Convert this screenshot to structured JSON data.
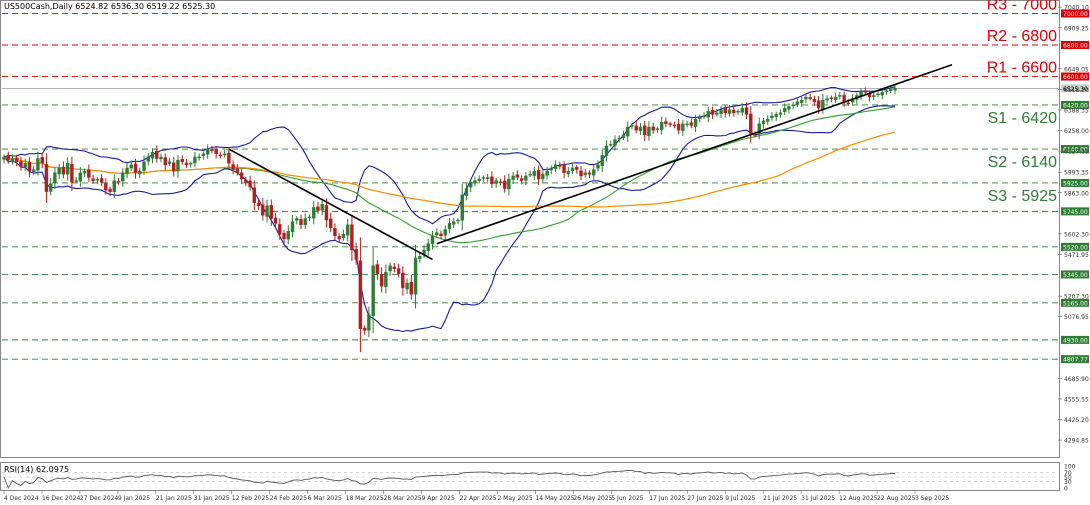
{
  "header": {
    "title": "US500Cash,Daily",
    "ohlc": "6524.82 6536.30 6519.22 6525.30"
  },
  "rsi_header": "RSI(14) 62.0975",
  "colors": {
    "bull": "#2e7d32",
    "bear": "#b71c1c",
    "bollinger": "#1a1aa6",
    "ma50": "#33a02c",
    "ma100": "#ff8c00",
    "resistance": "#e00000",
    "support": "#2e7d32",
    "trendline": "#000000",
    "rsi": "#555555"
  },
  "levels": {
    "resistance": [
      {
        "label": "R3 - 7000",
        "tag": "7000.00",
        "value": 7000
      },
      {
        "label": "R2 - 6800",
        "tag": "6800.00",
        "value": 6800
      },
      {
        "label": "R1 - 6600",
        "tag": "6600.00",
        "value": 6600
      }
    ],
    "support": [
      {
        "label": "S1 - 6420",
        "tag": "6420.00",
        "value": 6420
      },
      {
        "label": "S2 - 6140",
        "tag": "6140.00",
        "value": 6140
      },
      {
        "label": "S3 - 5925",
        "tag": "5925.00",
        "value": 5925
      },
      {
        "label": "",
        "tag": "5745.00",
        "value": 5745
      },
      {
        "label": "",
        "tag": "5520.00",
        "value": 5520
      },
      {
        "label": "",
        "tag": "5345.00",
        "value": 5345
      },
      {
        "label": "",
        "tag": "5165.00",
        "value": 5165
      },
      {
        "label": "",
        "tag": "4930.00",
        "value": 4930
      },
      {
        "label": "",
        "tag": "4807.77",
        "value": 4807.77
      }
    ],
    "current_price_tag": "6525.30"
  },
  "chart_data": {
    "type": "candlestick",
    "ylim": [
      4200,
      7060
    ],
    "y_ticks": [
      "7040.10",
      "6909.25",
      "6649.05",
      "6518.20",
      "6388.35",
      "6258.00",
      "6127.15",
      "5993.35",
      "5863.00",
      "5602.30",
      "5471.95",
      "5207.30",
      "5076.95",
      "4685.90",
      "4555.55",
      "4425.20",
      "4294.85"
    ],
    "x_labels": [
      "4 Dec 2024",
      "16 Dec 2024",
      "27 Dec 2024",
      "9 Jan 2025",
      "21 Jan 2025",
      "31 Jan 2025",
      "12 Feb 2025",
      "24 Feb 2025",
      "6 Mar 2025",
      "18 Mar 2025",
      "28 Mar 2025",
      "9 Apr 2025",
      "22 Apr 2025",
      "2 May 2025",
      "14 May 2025",
      "26 May 2025",
      "5 Jun 2025",
      "17 Jun 2025",
      "27 Jun 2025",
      "9 Jul 2025",
      "21 Jul 2025",
      "31 Jul 2025",
      "12 Aug 2025",
      "22 Aug 2025",
      "3 Sep 2025"
    ],
    "closes": [
      6090,
      6070,
      6080,
      6060,
      6030,
      6050,
      6000,
      6010,
      6080,
      6050,
      5870,
      5920,
      5990,
      6020,
      5980,
      6050,
      5930,
      5940,
      5990,
      6000,
      5960,
      5940,
      5950,
      5930,
      5880,
      5870,
      5940,
      5930,
      5990,
      6020,
      6040,
      5990,
      6000,
      6060,
      6090,
      6120,
      6080,
      6090,
      6040,
      6060,
      6000,
      6070,
      6060,
      6040,
      6050,
      6090,
      6090,
      6110,
      6140,
      6130,
      6110,
      6100,
      6110,
      6050,
      6010,
      5990,
      5950,
      5930,
      5900,
      5800,
      5780,
      5720,
      5780,
      5700,
      5670,
      5600,
      5570,
      5620,
      5680,
      5700,
      5660,
      5700,
      5710,
      5770,
      5750,
      5790,
      5690,
      5640,
      5590,
      5570,
      5600,
      5660,
      5500,
      5440,
      5000,
      4990,
      5090,
      5400,
      5350,
      5270,
      5360,
      5400,
      5380,
      5350,
      5260,
      5290,
      5220,
      5450,
      5460,
      5500,
      5540,
      5590,
      5610,
      5590,
      5630,
      5670,
      5680,
      5690,
      5850,
      5890,
      5930,
      5940,
      5950,
      5960,
      5960,
      5920,
      5940,
      5930,
      5890,
      5950,
      5970,
      5960,
      5940,
      5970,
      5980,
      6000,
      5950,
      5980,
      6000,
      6020,
      6040,
      6030,
      5990,
      6000,
      6020,
      6010,
      5970,
      5990,
      5980,
      6010,
      6040,
      6100,
      6160,
      6170,
      6200,
      6210,
      6230,
      6280,
      6290,
      6260,
      6280,
      6230,
      6280,
      6260,
      6270,
      6310,
      6300,
      6300,
      6290,
      6260,
      6300,
      6300,
      6290,
      6330,
      6340,
      6350,
      6380,
      6360,
      6370,
      6390,
      6370,
      6390,
      6370,
      6380,
      6400,
      6360,
      6240,
      6230,
      6300,
      6320,
      6330,
      6350,
      6360,
      6370,
      6400,
      6410,
      6420,
      6440,
      6450,
      6470,
      6460,
      6440,
      6400,
      6450,
      6460,
      6460,
      6470,
      6480,
      6440,
      6430,
      6460,
      6480,
      6500,
      6500,
      6470,
      6480,
      6490,
      6500,
      6510,
      6520,
      6525
    ]
  },
  "rsi_data": {
    "ylim": [
      0,
      100
    ],
    "ticks": [
      "100",
      "70",
      "50",
      "30",
      "0"
    ]
  }
}
